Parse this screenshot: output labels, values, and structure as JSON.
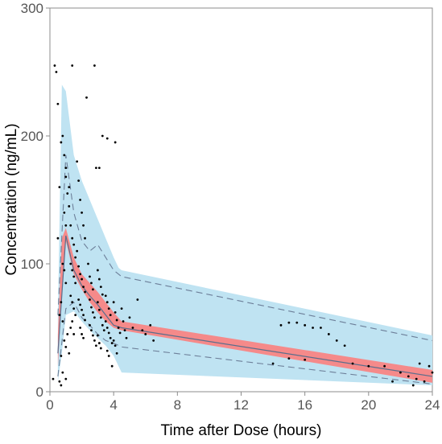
{
  "chart_data": {
    "type": "scatter",
    "title": "",
    "xlabel": "Time after Dose (hours)",
    "ylabel": "Concentration (ng/mL)",
    "xlim": [
      0,
      24
    ],
    "ylim": [
      0,
      300
    ],
    "xticks": [
      0,
      4,
      8,
      12,
      16,
      20,
      24
    ],
    "yticks": [
      0,
      100,
      200,
      300
    ],
    "xtick_labels": [
      "0",
      "4",
      "8",
      "12",
      "16",
      "20",
      "24"
    ],
    "ytick_labels": [
      "0",
      "100",
      "200",
      "300"
    ],
    "grid": false,
    "legend": "none",
    "colors": {
      "outer_band": "#bfe3f2",
      "median_band": "#f58a8a",
      "median_line": "#5a6e8c",
      "percentile_lines": "#6d7f99",
      "points": "#000000"
    },
    "bands": [
      {
        "x": [
          0.5,
          0.75,
          1,
          1.5,
          2,
          2.5,
          3,
          3.5,
          4,
          4.5,
          24
        ],
        "lower": [
          8,
          30,
          60,
          63,
          55,
          48,
          42,
          36,
          28,
          15,
          5
        ],
        "upper": [
          35,
          140,
          190,
          155,
          145,
          140,
          130,
          115,
          100,
          95,
          44
        ]
      },
      {
        "x": [
          0.5,
          0.75,
          1,
          1.5,
          2,
          2.5,
          3,
          3.5,
          4,
          4.5,
          24
        ],
        "lower": [
          28,
          60,
          95,
          85,
          75,
          65,
          55,
          45,
          42,
          40,
          8
        ],
        "upper": [
          60,
          240,
          235,
          185,
          165,
          150,
          135,
          120,
          105,
          92,
          35
        ]
      },
      {
        "x": [
          0.5,
          0.75,
          1,
          1.5,
          2,
          2.5,
          3,
          3.5,
          4,
          4.5,
          24
        ],
        "lower": [
          20,
          75,
          118,
          92,
          80,
          70,
          62,
          55,
          50,
          48,
          7
        ],
        "upper": [
          45,
          120,
          128,
          105,
          92,
          85,
          78,
          70,
          62,
          55,
          17
        ]
      }
    ],
    "band_fills": [
      "outer_band",
      "outer_band",
      "median_band"
    ],
    "series": [
      {
        "role": "upper",
        "style": "dashed",
        "x": [
          0.5,
          1,
          1.5,
          2,
          2.5,
          3,
          3.5,
          4,
          4.5,
          24
        ],
        "y": [
          60,
          185,
          140,
          118,
          110,
          115,
          105,
          95,
          90,
          40
        ]
      },
      {
        "role": "median",
        "style": "solid",
        "x": [
          0.5,
          1,
          1.5,
          2,
          2.5,
          3,
          3.5,
          4,
          4.5,
          24
        ],
        "y": [
          30,
          122,
          95,
          83,
          75,
          68,
          60,
          52,
          50,
          12
        ]
      },
      {
        "role": "lower",
        "style": "dashed",
        "x": [
          0.5,
          1,
          1.5,
          2,
          2.5,
          3,
          3.5,
          4,
          4.5,
          24
        ],
        "y": [
          12,
          65,
          70,
          58,
          52,
          45,
          40,
          38,
          35,
          6
        ]
      }
    ],
    "points": [
      [
        0.2,
        10
      ],
      [
        0.3,
        255
      ],
      [
        0.4,
        250
      ],
      [
        0.5,
        225
      ],
      [
        0.6,
        8
      ],
      [
        0.7,
        28
      ],
      [
        0.8,
        15
      ],
      [
        0.5,
        120
      ],
      [
        0.6,
        160
      ],
      [
        0.7,
        195
      ],
      [
        0.8,
        200
      ],
      [
        0.9,
        185
      ],
      [
        1.0,
        168
      ],
      [
        1.0,
        175
      ],
      [
        0.9,
        140
      ],
      [
        1.0,
        130
      ],
      [
        1.1,
        155
      ],
      [
        0.8,
        100
      ],
      [
        0.9,
        95
      ],
      [
        1.0,
        85
      ],
      [
        0.6,
        60
      ],
      [
        0.7,
        70
      ],
      [
        0.8,
        55
      ],
      [
        0.9,
        40
      ],
      [
        1.0,
        35
      ],
      [
        1.1,
        45
      ],
      [
        0.7,
        5
      ],
      [
        1.0,
        10
      ],
      [
        1.2,
        160
      ],
      [
        1.2,
        145
      ],
      [
        1.3,
        130
      ],
      [
        1.4,
        120
      ],
      [
        1.5,
        115
      ],
      [
        1.6,
        105
      ],
      [
        1.3,
        100
      ],
      [
        1.4,
        95
      ],
      [
        1.5,
        90
      ],
      [
        1.6,
        85
      ],
      [
        1.3,
        75
      ],
      [
        1.4,
        70
      ],
      [
        1.5,
        65
      ],
      [
        1.6,
        60
      ],
      [
        1.3,
        50
      ],
      [
        1.4,
        55
      ],
      [
        1.5,
        45
      ],
      [
        1.2,
        30
      ],
      [
        1.4,
        255
      ],
      [
        1.7,
        180
      ],
      [
        1.8,
        165
      ],
      [
        1.9,
        150
      ],
      [
        2.0,
        140
      ],
      [
        2.1,
        130
      ],
      [
        2.2,
        120
      ],
      [
        1.7,
        110
      ],
      [
        1.8,
        98
      ],
      [
        1.9,
        92
      ],
      [
        2.0,
        88
      ],
      [
        2.1,
        82
      ],
      [
        2.2,
        78
      ],
      [
        1.8,
        72
      ],
      [
        1.9,
        68
      ],
      [
        2.0,
        64
      ],
      [
        2.1,
        60
      ],
      [
        2.2,
        56
      ],
      [
        1.9,
        50
      ],
      [
        2.0,
        45
      ],
      [
        2.1,
        42
      ],
      [
        2.3,
        230
      ],
      [
        2.4,
        100
      ],
      [
        2.5,
        90
      ],
      [
        2.6,
        85
      ],
      [
        2.7,
        80
      ],
      [
        2.5,
        72
      ],
      [
        2.6,
        66
      ],
      [
        2.7,
        62
      ],
      [
        2.8,
        58
      ],
      [
        2.5,
        52
      ],
      [
        2.6,
        48
      ],
      [
        2.7,
        44
      ],
      [
        2.8,
        40
      ],
      [
        2.9,
        36
      ],
      [
        2.8,
        255
      ],
      [
        2.9,
        175
      ],
      [
        3.1,
        175
      ],
      [
        3.0,
        95
      ],
      [
        3.1,
        88
      ],
      [
        3.2,
        82
      ],
      [
        3.3,
        76
      ],
      [
        3.0,
        70
      ],
      [
        3.1,
        64
      ],
      [
        3.2,
        58
      ],
      [
        3.3,
        52
      ],
      [
        3.4,
        48
      ],
      [
        3.0,
        44
      ],
      [
        3.1,
        38
      ],
      [
        3.2,
        34
      ],
      [
        3.3,
        200
      ],
      [
        3.6,
        198
      ],
      [
        3.5,
        75
      ],
      [
        3.6,
        70
      ],
      [
        3.7,
        65
      ],
      [
        3.8,
        60
      ],
      [
        3.5,
        55
      ],
      [
        3.6,
        50
      ],
      [
        3.7,
        46
      ],
      [
        3.8,
        42
      ],
      [
        3.9,
        38
      ],
      [
        3.6,
        32
      ],
      [
        3.7,
        28
      ],
      [
        3.9,
        20
      ],
      [
        4.1,
        195
      ],
      [
        4.0,
        70
      ],
      [
        4.1,
        62
      ],
      [
        4.2,
        56
      ],
      [
        4.3,
        50
      ],
      [
        4.4,
        46
      ],
      [
        4.0,
        40
      ],
      [
        4.1,
        36
      ],
      [
        4.2,
        30
      ],
      [
        4.5,
        65
      ],
      [
        4.6,
        55
      ],
      [
        4.7,
        48
      ],
      [
        4.8,
        42
      ],
      [
        5.0,
        58
      ],
      [
        5.2,
        50
      ],
      [
        5.5,
        72
      ],
      [
        5.8,
        48
      ],
      [
        6.0,
        45
      ],
      [
        6.3,
        52
      ],
      [
        6.5,
        40
      ],
      [
        14.5,
        52
      ],
      [
        15.0,
        54
      ],
      [
        15.5,
        54
      ],
      [
        16.0,
        52
      ],
      [
        16.5,
        50
      ],
      [
        17.0,
        50
      ],
      [
        17.5,
        45
      ],
      [
        18.0,
        40
      ],
      [
        18.5,
        36
      ],
      [
        15.0,
        26
      ],
      [
        16.0,
        25
      ],
      [
        14.0,
        22
      ],
      [
        19.0,
        22
      ],
      [
        20.0,
        20
      ],
      [
        21.0,
        20
      ],
      [
        22.0,
        15
      ],
      [
        22.5,
        12
      ],
      [
        23.0,
        10
      ],
      [
        23.5,
        8
      ],
      [
        23.8,
        20
      ],
      [
        24.0,
        15
      ],
      [
        23.2,
        22
      ],
      [
        22.8,
        5
      ],
      [
        21.5,
        8
      ]
    ]
  }
}
